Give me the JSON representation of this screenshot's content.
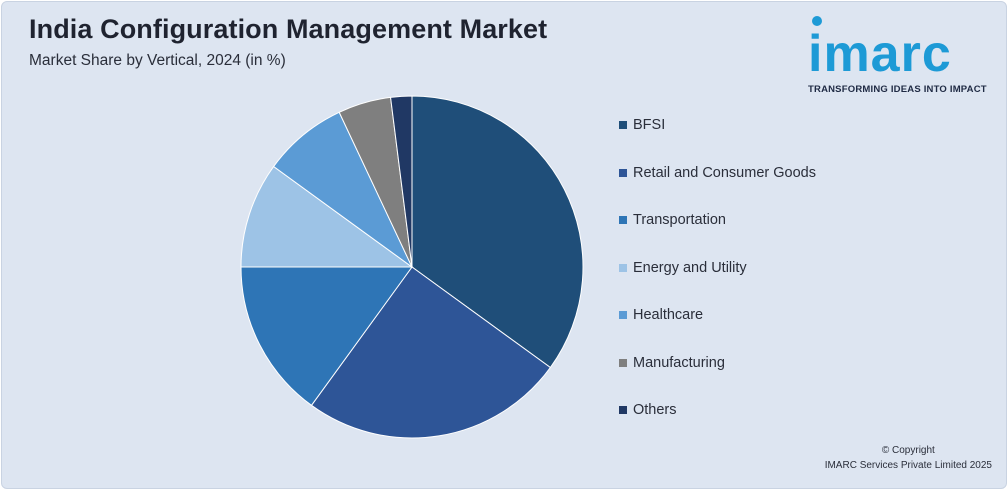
{
  "header": {
    "title": "India Configuration Management Market",
    "subtitle": "Market Share by Vertical, 2024 (in %)"
  },
  "logo": {
    "wordmark": "imarc",
    "tagline": "TRANSFORMING IDEAS INTO IMPACT",
    "color": "#1d9ad6"
  },
  "footer": {
    "copyright_line1": "© Copyright",
    "copyright_line2": "IMARC Services Private Limited 2025"
  },
  "chart_data": {
    "type": "pie",
    "title": "India Configuration Management Market",
    "subtitle": "Market Share by Vertical, 2024 (in %)",
    "legend_position": "right",
    "start": "top, clockwise",
    "slices": [
      {
        "label": "BFSI",
        "value": 35,
        "color": "#1f4e79"
      },
      {
        "label": "Retail and Consumer Goods",
        "value": 25,
        "color": "#2e5597"
      },
      {
        "label": "Transportation",
        "value": 15,
        "color": "#2e75b6"
      },
      {
        "label": "Energy and Utility",
        "value": 10,
        "color": "#9dc3e6"
      },
      {
        "label": "Healthcare",
        "value": 8,
        "color": "#5b9bd5"
      },
      {
        "label": "Manufacturing",
        "value": 5,
        "color": "#7f7f7f"
      },
      {
        "label": "Others",
        "value": 2,
        "color": "#203864"
      }
    ]
  }
}
